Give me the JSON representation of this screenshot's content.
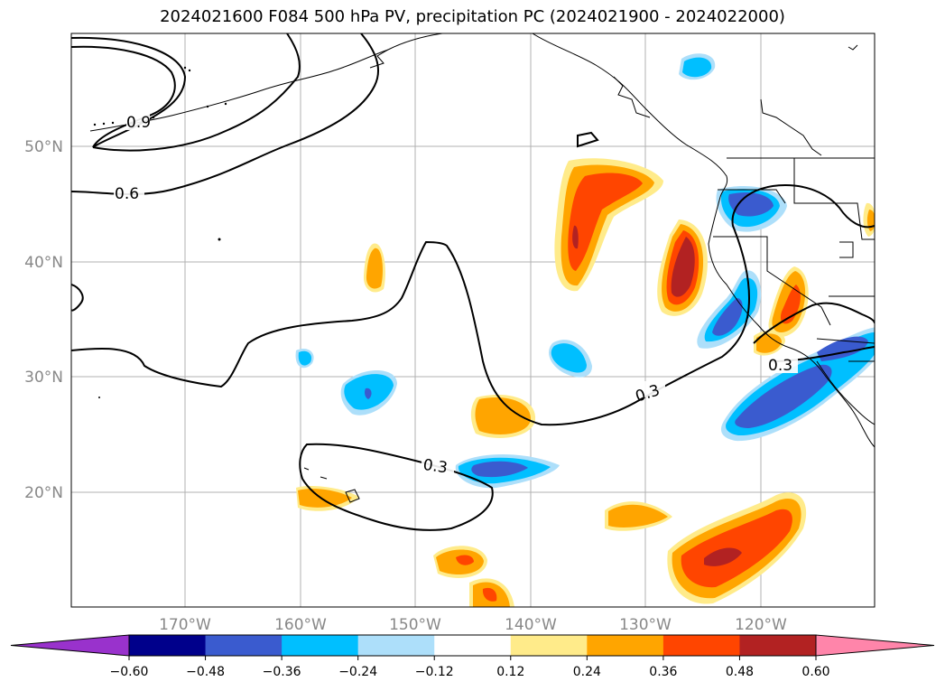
{
  "title": "2024021600 F084 500 hPa PV, precipitation PC (2024021900 - 2024022000)",
  "lat_labels": [
    "50°N",
    "40°N",
    "30°N",
    "20°N"
  ],
  "lon_labels": [
    "170°W",
    "160°W",
    "150°W",
    "140°W",
    "130°W",
    "120°W"
  ],
  "contour_labels": [
    "0.9",
    "0.6",
    "0.3",
    "0.3",
    "0.3"
  ],
  "colorbar": {
    "levels": [
      "−0.60",
      "−0.48",
      "−0.36",
      "−0.24",
      "−0.12",
      "0.12",
      "0.24",
      "0.36",
      "0.48",
      "0.60"
    ],
    "colors": [
      "#9932CC",
      "#00008B",
      "#3A5BCF",
      "#00BFFF",
      "#ADDFFA",
      "#FFFFFF",
      "#FFEB8A",
      "#FFA500",
      "#FF4500",
      "#B22222",
      "#FF85AA"
    ]
  },
  "colors": {
    "pos1": "#FFEB8A",
    "pos2": "#FFA500",
    "pos3": "#FF4500",
    "pos4": "#B22222",
    "neg1": "#ADDFFA",
    "neg2": "#00BFFF",
    "neg3": "#3A5BCF"
  }
}
